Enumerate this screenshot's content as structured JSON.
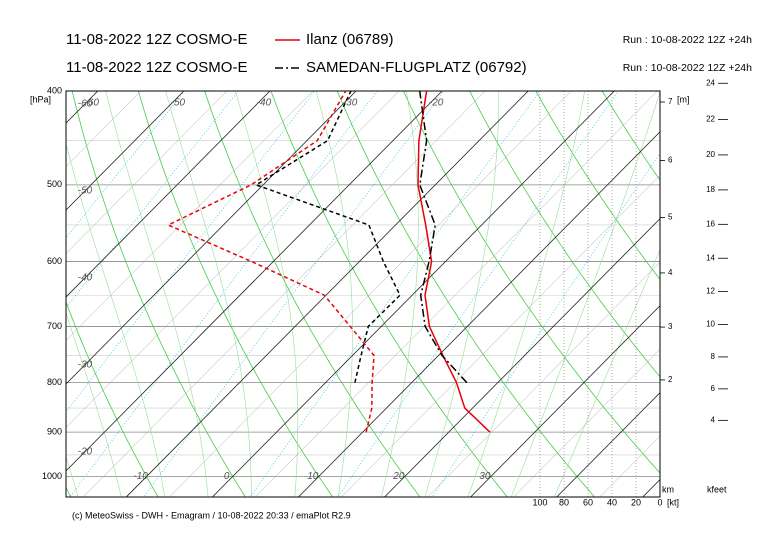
{
  "chart_data": {
    "type": "emagram",
    "series": [
      {
        "name": "Ilanz (06789)",
        "model": "11-08-2022 12Z COSMO-E",
        "run": "Run : 10-08-2022 12Z +24h",
        "color": "#e8000b",
        "line_style": "solid",
        "pressure": [
          900,
          850,
          800,
          750,
          700,
          650,
          600,
          550,
          500,
          450,
          400
        ],
        "temperature": [
          24.8,
          19.1,
          15.2,
          10.5,
          5.6,
          1.5,
          -1.6,
          -6.5,
          -12,
          -17,
          -21.8
        ],
        "dewpoint": [
          10.4,
          8.3,
          5.4,
          2.5,
          -3.6,
          -10.2,
          -22.5,
          -36.4,
          -31.4,
          -28.8,
          -31.2
        ]
      },
      {
        "name": "SAMEDAN-FLUGPLATZ (06792)",
        "model": "11-08-2022 12Z COSMO-E",
        "run": "Run : 10-08-2022 12Z +24h",
        "color": "#000000",
        "line_style": "dashdot",
        "pressure": [
          800,
          750,
          700,
          650,
          600,
          550,
          500,
          450,
          400
        ],
        "temperature": [
          16.4,
          10.4,
          5.1,
          1.0,
          -1.9,
          -5.4,
          -11.8,
          -16.1,
          -22.6
        ],
        "dewpoint": [
          3.4,
          1.0,
          -1.5,
          -1.4,
          -7.2,
          -13.1,
          -30.8,
          -27.6,
          -30.6
        ]
      }
    ],
    "ylabel": "[hPa]",
    "log_y": true,
    "ylim": [
      1050,
      400
    ],
    "yticks": [
      400,
      500,
      600,
      700,
      800,
      900,
      1000
    ],
    "xlim": [
      -17,
      52
    ],
    "xticks_bottom": [
      -10,
      0,
      10,
      20,
      30
    ],
    "xticks_top": [
      -60,
      -50,
      -40,
      -30,
      -20
    ],
    "xticks_left": [
      -60,
      -50,
      -40,
      -30,
      -20
    ],
    "height_label": "[m]",
    "height_unit": "km",
    "height_ticks": [
      2,
      3,
      4,
      5,
      6,
      7
    ],
    "kfeet_label": "kfeet",
    "kfeet_ticks": [
      4,
      6,
      8,
      10,
      12,
      14,
      16,
      18,
      20,
      22,
      24
    ],
    "wind_lim": [
      100,
      0
    ],
    "wind_ticks": [
      100,
      80,
      60,
      40,
      20,
      0
    ],
    "wind_label": "[kt]",
    "footer": "(c) MeteoSwiss - DWH - Emagram / 10-08-2022 20:33 / emaPlot R2.9"
  }
}
